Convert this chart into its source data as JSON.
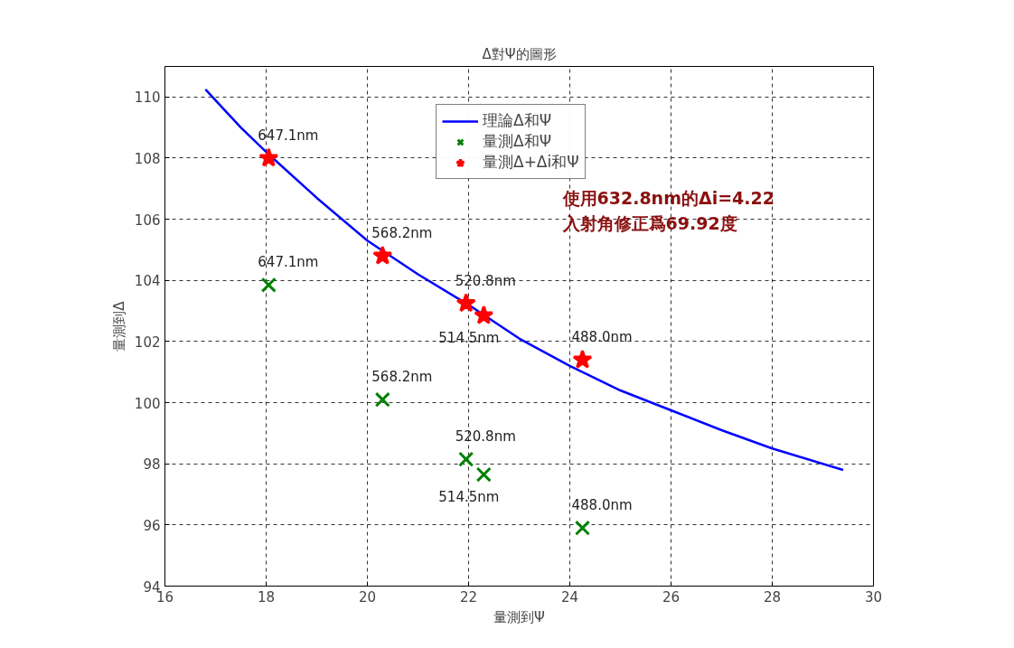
{
  "chart_data": {
    "type": "scatter",
    "title": "Δ對Ψ的圖形",
    "xlabel": "量測到Ψ",
    "ylabel": "量測到Δ",
    "xlim": [
      16,
      30
    ],
    "xticks": [
      16,
      18,
      20,
      22,
      24,
      26,
      28,
      30
    ],
    "ylim": [
      94,
      111
    ],
    "yticks": [
      94,
      96,
      98,
      100,
      102,
      104,
      106,
      108,
      110
    ],
    "grid": true,
    "legend": "top",
    "series": [
      {
        "name": "理論Δ和Ψ",
        "type": "line",
        "color": "#0000ff",
        "marker": "none",
        "line_style": "solid",
        "x": [
          16.8,
          17.5,
          18,
          19,
          20,
          21,
          22,
          23,
          24,
          25,
          26,
          27,
          28,
          29.4
        ],
        "values": [
          110.25,
          109.0,
          108.2,
          106.7,
          105.3,
          104.2,
          103.2,
          102.1,
          101.2,
          100.4,
          99.75,
          99.1,
          98.5,
          97.8
        ]
      },
      {
        "name": "量測Δ和Ψ",
        "color": "#008000",
        "marker": "cross",
        "x": [
          18.05,
          20.3,
          21.95,
          22.3,
          24.25
        ],
        "values": [
          103.85,
          100.1,
          98.15,
          97.65,
          95.9
        ]
      },
      {
        "name": "量測Δ+Δi和Ψ",
        "color": "#ff0000",
        "marker": "star",
        "x": [
          18.05,
          20.3,
          21.95,
          22.3,
          24.25
        ],
        "values": [
          108.0,
          104.8,
          103.25,
          102.85,
          101.4
        ]
      }
    ],
    "annotations": [
      {
        "text": "647.1nm",
        "x": 18.05,
        "y": 108.0
      },
      {
        "text": "647.1nm",
        "x": 18.05,
        "y": 103.85
      },
      {
        "text": "568.2nm",
        "x": 20.3,
        "y": 104.8
      },
      {
        "text": "568.2nm",
        "x": 20.3,
        "y": 100.1
      },
      {
        "text": "520.8nm",
        "x": 21.95,
        "y": 103.25
      },
      {
        "text": "520.8nm",
        "x": 21.95,
        "y": 98.15
      },
      {
        "text": "514.5nm",
        "x": 22.3,
        "y": 102.85
      },
      {
        "text": "514.5nm",
        "x": 22.3,
        "y": 97.65
      },
      {
        "text": "488.0nm",
        "x": 24.25,
        "y": 101.4
      },
      {
        "text": "488.0nm",
        "x": 24.25,
        "y": 95.9
      },
      "使用632.8nm的Δi=4.22\n入射角修正爲69.92度"
    ]
  }
}
